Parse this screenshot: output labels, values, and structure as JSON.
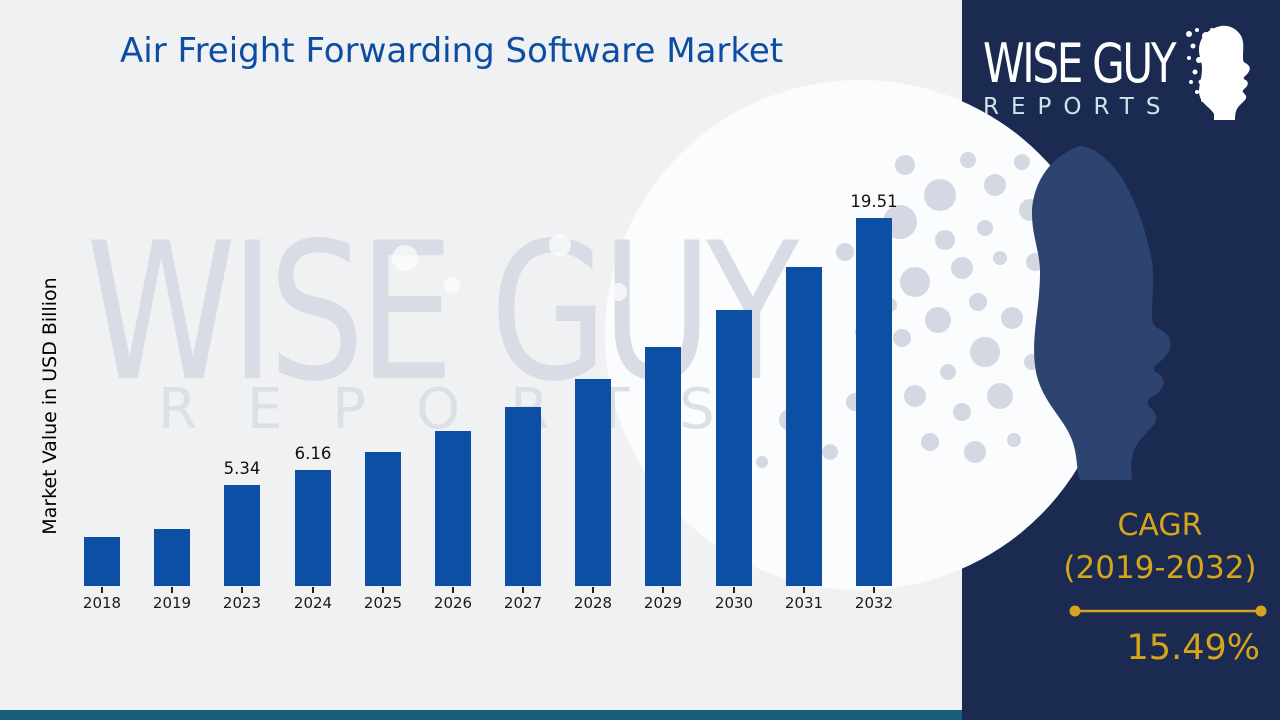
{
  "title": "Air Freight Forwarding Software Market",
  "y_axis_label": "Market Value in USD Billion",
  "watermark": {
    "line1": "WISE GUY",
    "line2": "REPORTS"
  },
  "logo": {
    "line1": "WISE GUY",
    "line2": "REPORTS"
  },
  "cagr": {
    "heading": "CAGR",
    "range": "(2019-2032)",
    "value": "15.49%"
  },
  "icons": {
    "logo_face": "head-profile-dots-icon",
    "hero_face": "head-profile-silhouette-icon"
  },
  "colors": {
    "bar_blue": "#0d4fa4",
    "title_blue": "#0c4da2",
    "panel_navy": "#1a2a50",
    "face_blue": "#2e4470",
    "accent_gold": "#d8a41b",
    "teal_strip": "#16607d",
    "watermark_gray": "#d9dce4",
    "circle_white": "#fbfcfe",
    "dot_gray": "#d3d8e2"
  },
  "chart_data": {
    "type": "bar",
    "title": "Air Freight Forwarding Software Market",
    "xlabel": "",
    "ylabel": "Market Value in USD Billion",
    "categories": [
      "2018",
      "2019",
      "2023",
      "2024",
      "2025",
      "2026",
      "2027",
      "2028",
      "2029",
      "2030",
      "2031",
      "2032"
    ],
    "values": [
      2.6,
      3.0,
      5.34,
      6.16,
      7.11,
      8.21,
      9.49,
      10.96,
      12.66,
      14.62,
      16.89,
      19.51
    ],
    "labeled_points": {
      "2023": "5.34",
      "2024": "6.16",
      "2032": "19.51"
    },
    "unit": "USD Billion",
    "ylim": [
      0,
      21
    ],
    "grid": false,
    "legend": "none",
    "bar_color": "#0d4fa4"
  }
}
